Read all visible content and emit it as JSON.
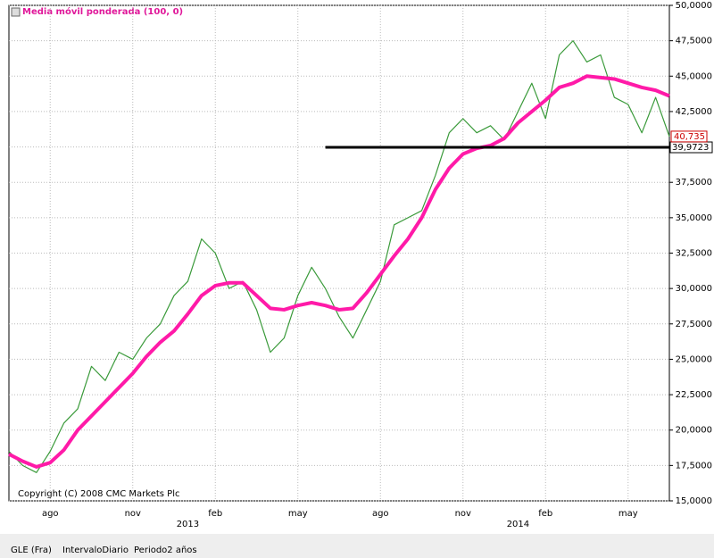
{
  "chart_data": {
    "type": "line",
    "legend": "Media móvil ponderada (100, 0)",
    "copyright": "Copyright (C) 2008 CMC Markets Plc",
    "categories": [
      null,
      null,
      null,
      "ago",
      null,
      null,
      null,
      null,
      null,
      "nov",
      null,
      null,
      null,
      null,
      null,
      "feb",
      null,
      null,
      null,
      null,
      null,
      "may",
      null,
      null,
      null,
      null,
      null,
      "ago",
      null,
      null,
      null,
      null,
      null,
      "nov",
      null,
      null,
      null,
      null,
      null,
      "feb",
      null,
      null,
      null,
      null,
      null,
      "may",
      null,
      null,
      null
    ],
    "years": [
      null,
      null,
      null,
      null,
      null,
      null,
      null,
      null,
      null,
      null,
      null,
      null,
      null,
      "2013",
      null,
      null,
      null,
      null,
      null,
      null,
      null,
      null,
      null,
      null,
      null,
      null,
      null,
      null,
      null,
      null,
      null,
      null,
      null,
      null,
      null,
      null,
      null,
      "2014",
      null,
      null,
      null,
      null,
      null,
      null,
      null,
      null,
      null,
      null,
      null
    ],
    "series": [
      {
        "name": "GLE (Fra)",
        "color": "#3a9a3a",
        "values": [
          18500,
          17500,
          17000,
          18500,
          20500,
          21500,
          24500,
          23500,
          25500,
          25000,
          26500,
          27500,
          29500,
          30500,
          33500,
          32500,
          30000,
          30500,
          28500,
          25500,
          26500,
          29500,
          31500,
          30000,
          28000,
          26500,
          28500,
          30500,
          34500,
          35000,
          35500,
          38000,
          41000,
          42000,
          41000,
          41500,
          40500,
          42500,
          44500,
          42000,
          46500,
          47500,
          46000,
          46500,
          43500,
          43000,
          41000,
          43500,
          40735
        ]
      },
      {
        "name": "Media móvil ponderada (100, 0)",
        "color": "#ff1aa8",
        "values": [
          18300,
          17800,
          17400,
          17700,
          18600,
          20000,
          21000,
          22000,
          23000,
          24000,
          25200,
          26200,
          27000,
          28200,
          29500,
          30200,
          30400,
          30400,
          29500,
          28600,
          28500,
          28800,
          29000,
          28800,
          28500,
          28600,
          29700,
          31000,
          32300,
          33500,
          35000,
          37000,
          38500,
          39500,
          39900,
          40100,
          40600,
          41700,
          42500,
          43300,
          44200,
          44500,
          45000,
          44900,
          44800,
          44500,
          44200,
          44000,
          43600
        ]
      }
    ],
    "last_price": {
      "value": 40735,
      "label": "40,735"
    },
    "hline": {
      "value": 39972.3,
      "label": "39,9723",
      "start": 23
    },
    "ylim": [
      15000,
      50000
    ],
    "yticks": [
      {
        "value": 15000,
        "label": "15,0000"
      },
      {
        "value": 17500,
        "label": "17,5000"
      },
      {
        "value": 20000,
        "label": "20,0000"
      },
      {
        "value": 22500,
        "label": "22,5000"
      },
      {
        "value": 25000,
        "label": "25,0000"
      },
      {
        "value": 27500,
        "label": "27,5000"
      },
      {
        "value": 30000,
        "label": "30,0000"
      },
      {
        "value": 32500,
        "label": "32,5000"
      },
      {
        "value": 35000,
        "label": "35,0000"
      },
      {
        "value": 37500,
        "label": "37,5000"
      },
      {
        "value": 40000,
        "label": "40,0000"
      },
      {
        "value": 42500,
        "label": "42,5000"
      },
      {
        "value": 45000,
        "label": "45,0000"
      },
      {
        "value": 47500,
        "label": "47,5000"
      },
      {
        "value": 50000,
        "label": "50,0000"
      }
    ],
    "grid": true
  },
  "status": [
    "GLE (Fra)",
    "IntervaloDiario",
    "Periodo2 años"
  ]
}
